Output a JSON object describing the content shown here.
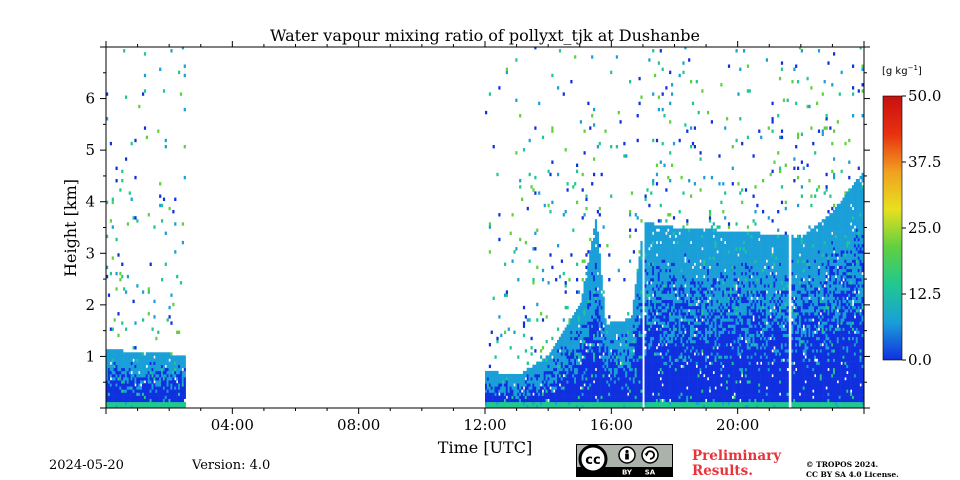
{
  "chart_data": {
    "type": "heatmap",
    "title": "Water vapour mixing ratio of pollyxt_tjk at Dushanbe",
    "xlabel": "Time [UTC]",
    "ylabel": "Height [km]",
    "x_unit": "hours UTC",
    "xlim": [
      0,
      24
    ],
    "ylim": [
      0,
      7
    ],
    "x_tick_labels": [
      "04:00",
      "08:00",
      "12:00",
      "16:00",
      "20:00"
    ],
    "x_tick_values": [
      4,
      8,
      12,
      16,
      20
    ],
    "y_tick_labels": [
      "1",
      "2",
      "3",
      "4",
      "5",
      "6"
    ],
    "y_tick_values": [
      1,
      2,
      3,
      4,
      5,
      6
    ],
    "colorbar": {
      "unit_label": "[g kg",
      "unit_exponent": "−1",
      "unit_suffix": "]",
      "min": 0,
      "max": 50,
      "tick_labels": [
        "0.0",
        "12.5",
        "25.0",
        "37.5",
        "50.0"
      ],
      "tick_values": [
        0,
        12.5,
        25,
        37.5,
        50
      ],
      "colors": [
        "#1030e0",
        "#1a9fd8",
        "#20c890",
        "#60d040",
        "#e8e020",
        "#f0a020",
        "#e83010",
        "#c81010"
      ]
    },
    "dense_layer_top_km": [
      {
        "t": 0.0,
        "h": 1.1
      },
      {
        "t": 2.5,
        "h": 1.0
      },
      {
        "t": 12.0,
        "h": 0.7
      },
      {
        "t": 13.0,
        "h": 0.6
      },
      {
        "t": 14.0,
        "h": 1.0
      },
      {
        "t": 15.0,
        "h": 2.0
      },
      {
        "t": 15.5,
        "h": 3.7
      },
      {
        "t": 15.8,
        "h": 1.6
      },
      {
        "t": 16.6,
        "h": 1.7
      },
      {
        "t": 17.0,
        "h": 3.6
      },
      {
        "t": 17.5,
        "h": 3.5
      },
      {
        "t": 22.0,
        "h": 3.3
      },
      {
        "t": 23.0,
        "h": 3.8
      },
      {
        "t": 24.0,
        "h": 4.6
      }
    ],
    "data_segments": [
      {
        "start": 0.0,
        "end": 2.5
      },
      {
        "start": 12.0,
        "end": 16.95
      },
      {
        "start": 17.05,
        "end": 21.6
      },
      {
        "start": 21.7,
        "end": 24.0
      }
    ]
  },
  "footer": {
    "date": "2024-05-20",
    "version": "Version: 4.0",
    "preliminary_line1": "Preliminary",
    "preliminary_line2": "Results.",
    "copyright_line1": "© TROPOS 2024.",
    "copyright_line2": "CC BY SA 4.0 License.",
    "badge_cc": "cc",
    "badge_by": "BY",
    "badge_sa": "SA"
  }
}
